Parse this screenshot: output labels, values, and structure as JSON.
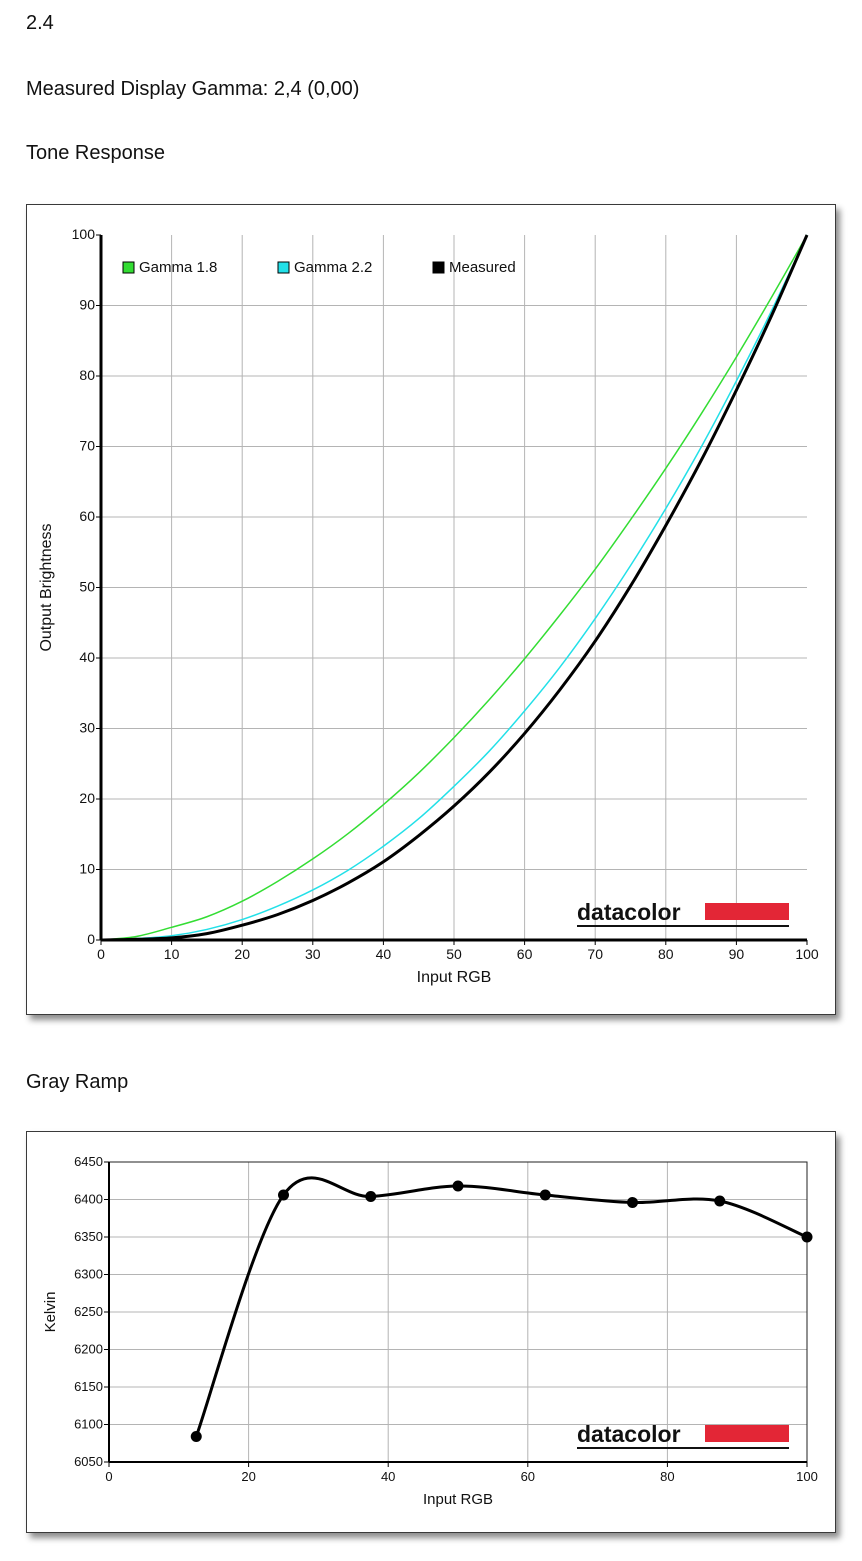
{
  "header_value": "2.4",
  "gamma_line": "Measured Display Gamma: 2,4 (0,00)",
  "tone_section_title": "Tone Response",
  "gray_section_title": "Gray Ramp",
  "brand": "datacolor",
  "colors": {
    "gamma18": "#33dd33",
    "gamma22": "#22e0e8",
    "measured": "#000000",
    "brand_red": "#e32636",
    "grid": "#b4b4b4"
  },
  "chart_data": [
    {
      "type": "line",
      "title": "Tone Response",
      "xlabel": "Input RGB",
      "ylabel": "Output Brightness",
      "xlim": [
        0,
        100
      ],
      "ylim": [
        0,
        100
      ],
      "xticks": [
        0,
        10,
        20,
        30,
        40,
        50,
        60,
        70,
        80,
        90,
        100
      ],
      "yticks": [
        0,
        10,
        20,
        30,
        40,
        50,
        60,
        70,
        80,
        90,
        100
      ],
      "grid": true,
      "legend_position": "top-left",
      "x": [
        0,
        5,
        10,
        15,
        20,
        25,
        30,
        35,
        40,
        45,
        50,
        55,
        60,
        65,
        70,
        75,
        80,
        85,
        90,
        95,
        100
      ],
      "series": [
        {
          "name": "Gamma 1.8",
          "color": "#33dd33",
          "values": [
            0,
            0.5,
            1.8,
            3.3,
            5.5,
            8.3,
            11.5,
            15.1,
            19.2,
            23.7,
            28.7,
            34.1,
            39.9,
            46.1,
            52.6,
            59.6,
            66.9,
            74.6,
            82.7,
            91.2,
            100
          ]
        },
        {
          "name": "Gamma 2.2",
          "color": "#22e0e8",
          "values": [
            0,
            0.2,
            0.6,
            1.5,
            2.9,
            4.8,
            7.1,
            9.9,
            13.3,
            17.2,
            21.8,
            26.8,
            32.5,
            38.7,
            45.6,
            53.1,
            61.2,
            69.9,
            79.3,
            89.3,
            100
          ]
        },
        {
          "name": "Measured",
          "color": "#000000",
          "values": [
            0,
            0.1,
            0.3,
            0.9,
            2.1,
            3.6,
            5.6,
            8.1,
            11.1,
            14.8,
            19.0,
            23.8,
            29.3,
            35.5,
            42.4,
            50.2,
            58.8,
            68.0,
            78.0,
            88.6,
            100
          ]
        }
      ]
    },
    {
      "type": "line",
      "title": "Gray Ramp",
      "xlabel": "Input RGB",
      "ylabel": "Kelvin",
      "xlim": [
        0,
        100
      ],
      "ylim": [
        6050,
        6450
      ],
      "xticks": [
        0,
        20,
        40,
        60,
        80,
        100
      ],
      "yticks": [
        6050,
        6100,
        6150,
        6200,
        6250,
        6300,
        6350,
        6400,
        6450
      ],
      "grid": true,
      "x": [
        12.5,
        25,
        37.5,
        50,
        62.5,
        75,
        87.5,
        100
      ],
      "series": [
        {
          "name": "",
          "color": "#000000",
          "values": [
            6084,
            6406,
            6404,
            6418,
            6406,
            6396,
            6398,
            6350
          ]
        }
      ]
    }
  ]
}
